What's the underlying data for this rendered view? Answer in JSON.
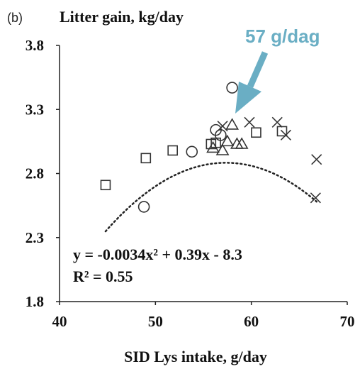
{
  "panel_label": "(b)",
  "callout": {
    "text": "57 g/dag",
    "color": "#6aaec4"
  },
  "equation": "y = -0.0034x² + 0.39x - 8.3",
  "r_squared": "R² = 0.55",
  "chart_data": {
    "type": "scatter",
    "title": "Litter gain, kg/day",
    "xlabel": "SID Lys intake, g/day",
    "ylabel": "",
    "xlim": [
      40,
      70
    ],
    "ylim": [
      1.8,
      3.8
    ],
    "x_ticks": [
      40,
      50,
      60,
      70
    ],
    "y_ticks": [
      3.8,
      3.3,
      2.8,
      2.3,
      1.8
    ],
    "grid": false,
    "legend": "none",
    "series": [
      {
        "marker": "square",
        "points": [
          [
            44.8,
            2.71
          ],
          [
            49.0,
            2.92
          ],
          [
            51.8,
            2.98
          ],
          [
            55.8,
            3.03
          ],
          [
            56.3,
            3.04
          ],
          [
            60.5,
            3.12
          ],
          [
            63.2,
            3.13
          ]
        ]
      },
      {
        "marker": "circle",
        "points": [
          [
            48.8,
            2.54
          ],
          [
            53.8,
            2.97
          ],
          [
            56.3,
            3.14
          ],
          [
            56.8,
            3.1
          ],
          [
            58.0,
            3.47
          ]
        ]
      },
      {
        "marker": "triangle",
        "points": [
          [
            56.0,
            3.0
          ],
          [
            57.0,
            2.98
          ],
          [
            57.5,
            3.05
          ],
          [
            58.0,
            3.18
          ],
          [
            58.5,
            3.03
          ],
          [
            59.0,
            3.03
          ]
        ]
      },
      {
        "marker": "x",
        "points": [
          [
            57.0,
            3.17
          ],
          [
            59.8,
            3.2
          ],
          [
            62.7,
            3.2
          ],
          [
            63.6,
            3.1
          ],
          [
            66.8,
            2.91
          ],
          [
            66.7,
            2.61
          ]
        ]
      }
    ],
    "trendline": {
      "a": -0.0034,
      "b": 0.39,
      "c": -8.3,
      "x_range": [
        44.8,
        66.8
      ],
      "style": "dotted"
    },
    "annotation": {
      "text": "57 g/dag",
      "arrow_to": [
        57.3,
        3.22
      ]
    }
  }
}
